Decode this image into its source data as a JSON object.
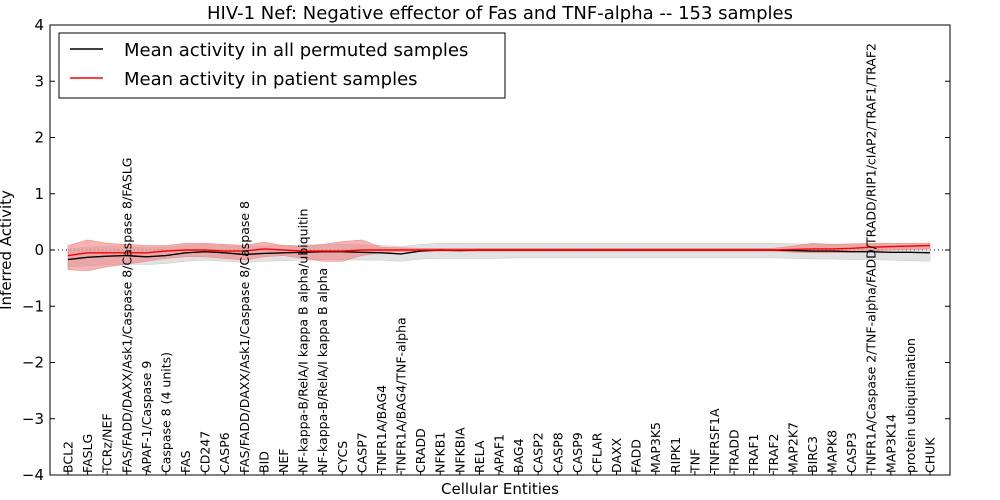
{
  "chart_data": {
    "type": "line",
    "title": "HIV-1 Nef: Negative effector of Fas and TNF-alpha -- 153 samples",
    "xlabel": "Cellular Entities",
    "ylabel": "Inferred Activity",
    "ylim": [
      -4,
      4
    ],
    "yticks": [
      "−4",
      "−3",
      "−2",
      "−1",
      "0",
      "1",
      "2",
      "3",
      "4"
    ],
    "ytick_values": [
      -4,
      -3,
      -2,
      -1,
      0,
      1,
      2,
      3,
      4
    ],
    "legend_position": "top-left",
    "categories": [
      "BCL2",
      "FASLG",
      "TCRz/NEF",
      "FAS/FADD/DAXX/Ask1/Caspase 8/Caspase 8/FASLG",
      "APAF-1/Caspase 9",
      "Caspase 8 (4 units)",
      "FAS",
      "CD247",
      "CASP6",
      "FAS/FADD/DAXX/Ask1/Caspase 8/Caspase 8",
      "BID",
      "NEF",
      "NF-kappa-B/RelA/I kappa B alpha/ubiquitin",
      "NF-kappa-B/RelA/I kappa B alpha",
      "CYCS",
      "CASP7",
      "TNFR1A/BAG4",
      "TNFR1A/BAG4/TNF-alpha",
      "CRADD",
      "NFKB1",
      "NFKBIA",
      "RELA",
      "APAF1",
      "BAG4",
      "CASP2",
      "CASP8",
      "CASP9",
      "CFLAR",
      "DAXX",
      "FADD",
      "MAP3K5",
      "RIPK1",
      "TNF",
      "TNFRSF1A",
      "TRADD",
      "TRAF1",
      "TRAF2",
      "MAP2K7",
      "BIRC3",
      "MAPK8",
      "CASP3",
      "TNFR1A/Caspase 2/TNF-alpha/FADD/TRADD/RIP1/cIAP2/TRAF1/TRAF2",
      "MAP3K14",
      "protein ubiquitination",
      "CHUK"
    ],
    "series": [
      {
        "name": "Mean activity in all permuted samples",
        "color": "#000000",
        "band_color": "#c8c8c8",
        "values": [
          -0.17,
          -0.13,
          -0.11,
          -0.1,
          -0.12,
          -0.1,
          -0.05,
          -0.03,
          -0.05,
          -0.08,
          -0.06,
          -0.05,
          -0.04,
          -0.03,
          -0.03,
          -0.04,
          -0.05,
          -0.07,
          -0.02,
          0,
          -0.01,
          0,
          0,
          0,
          0,
          0,
          0,
          0,
          0,
          0,
          0,
          0,
          0,
          0,
          0,
          0,
          0,
          -0.01,
          -0.02,
          -0.02,
          -0.03,
          -0.03,
          -0.04,
          -0.04,
          -0.05
        ],
        "lower": [
          -0.3,
          -0.28,
          -0.26,
          -0.25,
          -0.26,
          -0.24,
          -0.2,
          -0.18,
          -0.2,
          -0.22,
          -0.2,
          -0.19,
          -0.18,
          -0.17,
          -0.17,
          -0.18,
          -0.18,
          -0.2,
          -0.16,
          -0.15,
          -0.15,
          -0.15,
          -0.15,
          -0.14,
          -0.14,
          -0.14,
          -0.14,
          -0.14,
          -0.14,
          -0.14,
          -0.14,
          -0.14,
          -0.14,
          -0.14,
          -0.14,
          -0.14,
          -0.14,
          -0.15,
          -0.16,
          -0.16,
          -0.17,
          -0.17,
          -0.18,
          -0.19,
          -0.2
        ],
        "upper": [
          0.02,
          0.05,
          0.06,
          0.06,
          0.04,
          0.05,
          0.08,
          0.1,
          0.08,
          0.06,
          0.07,
          0.08,
          0.09,
          0.1,
          0.1,
          0.09,
          0.08,
          0.06,
          0.1,
          0.12,
          0.12,
          0.12,
          0.12,
          0.12,
          0.12,
          0.12,
          0.12,
          0.12,
          0.12,
          0.12,
          0.12,
          0.12,
          0.12,
          0.12,
          0.12,
          0.12,
          0.12,
          0.11,
          0.1,
          0.1,
          0.09,
          0.09,
          0.09,
          0.08,
          0.08
        ]
      },
      {
        "name": "Mean activity in patient samples",
        "color": "#ff0000",
        "band_color": "#f08080",
        "values": [
          -0.1,
          -0.05,
          -0.05,
          -0.05,
          -0.05,
          -0.02,
          0.0,
          0.0,
          -0.02,
          -0.02,
          0.02,
          0,
          -0.02,
          -0.02,
          -0.02,
          0,
          0,
          0,
          0,
          0,
          0,
          0,
          0,
          0,
          0,
          0,
          0,
          0,
          0,
          0,
          0,
          0,
          0,
          0,
          0,
          0,
          0,
          0.01,
          0.02,
          0.02,
          0.03,
          0.05,
          0.06,
          0.07,
          0.08
        ],
        "lower": [
          -0.35,
          -0.37,
          -0.3,
          -0.25,
          -0.2,
          -0.15,
          -0.12,
          -0.12,
          -0.15,
          -0.18,
          -0.12,
          -0.1,
          -0.15,
          -0.2,
          -0.2,
          -0.1,
          -0.05,
          -0.03,
          -0.02,
          -0.02,
          -0.02,
          -0.02,
          -0.02,
          -0.02,
          -0.02,
          -0.02,
          -0.02,
          -0.02,
          -0.02,
          -0.02,
          -0.02,
          -0.02,
          -0.02,
          -0.02,
          -0.02,
          -0.02,
          -0.02,
          -0.04,
          -0.05,
          -0.05,
          -0.04,
          -0.02,
          0.0,
          0.01,
          0.02
        ],
        "upper": [
          0.08,
          0.18,
          0.12,
          0.1,
          0.08,
          0.08,
          0.12,
          0.12,
          0.1,
          0.08,
          0.14,
          0.08,
          0.06,
          0.1,
          0.15,
          0.18,
          0.05,
          0.04,
          0.03,
          0.03,
          0.03,
          0.03,
          0.03,
          0.03,
          0.03,
          0.03,
          0.03,
          0.03,
          0.03,
          0.03,
          0.03,
          0.03,
          0.03,
          0.03,
          0.03,
          0.03,
          0.03,
          0.07,
          0.12,
          0.1,
          0.11,
          0.12,
          0.12,
          0.12,
          0.12
        ]
      }
    ]
  }
}
